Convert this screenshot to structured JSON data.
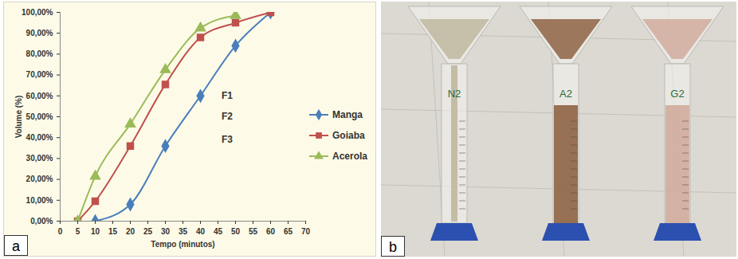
{
  "chart_data": {
    "type": "line",
    "panel_label": "a",
    "x_label": "Tempo (minutos)",
    "y_label": "Volume (%)",
    "xlim": [
      0,
      70
    ],
    "xticks": [
      0,
      5,
      10,
      15,
      20,
      25,
      30,
      35,
      40,
      45,
      50,
      55,
      60,
      65,
      70
    ],
    "ylim": [
      0,
      100
    ],
    "yticks": [
      {
        "value": 0,
        "label": "0,00%"
      },
      {
        "value": 10,
        "label": "10,00%"
      },
      {
        "value": 20,
        "label": "20,00%"
      },
      {
        "value": 30,
        "label": "30,00%"
      },
      {
        "value": 40,
        "label": "40,00%"
      },
      {
        "value": 50,
        "label": "50,00%"
      },
      {
        "value": 60,
        "label": "60,00%"
      },
      {
        "value": 70,
        "label": "70,00%"
      },
      {
        "value": 80,
        "label": "80,00%"
      },
      {
        "value": 90,
        "label": "90,00%"
      },
      {
        "value": 100,
        "label": "100,00%"
      }
    ],
    "grid": false,
    "legend": "right",
    "line_style": "smooth",
    "series": [
      {
        "name": "Manga",
        "color": "#4a7ebb",
        "marker": "diamond",
        "x": [
          10,
          20,
          30,
          40,
          50,
          60
        ],
        "values": [
          0,
          8,
          36,
          60,
          84,
          100
        ]
      },
      {
        "name": "Goiaba",
        "color": "#c0504d",
        "marker": "square",
        "x": [
          5,
          10,
          20,
          30,
          40,
          50,
          60
        ],
        "values": [
          0,
          9.5,
          36,
          65.5,
          88,
          95,
          100
        ]
      },
      {
        "name": "Acerola",
        "color": "#9bbb59",
        "marker": "triangle",
        "x": [
          5,
          10,
          20,
          30,
          40,
          50
        ],
        "values": [
          0,
          21.5,
          46.5,
          72.5,
          92.5,
          98.5
        ]
      }
    ],
    "annotations": [
      {
        "text": "F1",
        "x": 46,
        "y": 60
      },
      {
        "text": "F2",
        "x": 46,
        "y": 50
      },
      {
        "text": "F3",
        "x": 46,
        "y": 39
      }
    ]
  },
  "photo": {
    "panel_label": "b",
    "labels": [
      "N2",
      "A2",
      "G2"
    ]
  }
}
